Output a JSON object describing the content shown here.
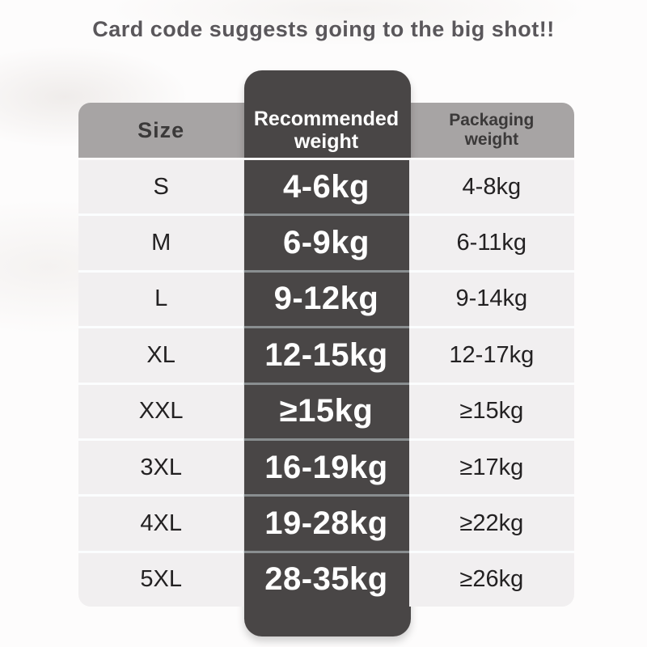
{
  "page": {
    "title": "Card code suggests going to the big shot!!"
  },
  "table": {
    "headers": {
      "size": "Size",
      "recommended_line1": "Recommended",
      "recommended_line2": "weight",
      "packaging_line1": "Packaging",
      "packaging_line2": "weight"
    },
    "rows": [
      {
        "size": "S",
        "recommended": "4-6kg",
        "packaging": "4-8kg"
      },
      {
        "size": "M",
        "recommended": "6-9kg",
        "packaging": "6-11kg"
      },
      {
        "size": "L",
        "recommended": "9-12kg",
        "packaging": "9-14kg"
      },
      {
        "size": "XL",
        "recommended": "12-15kg",
        "packaging": "12-17kg"
      },
      {
        "size": "XXL",
        "recommended": "≥15kg",
        "packaging": "≥15kg"
      },
      {
        "size": "3XL",
        "recommended": "16-19kg",
        "packaging": "≥17kg"
      },
      {
        "size": "4XL",
        "recommended": "19-28kg",
        "packaging": "≥22kg"
      },
      {
        "size": "5XL",
        "recommended": "28-35kg",
        "packaging": "≥26kg"
      }
    ]
  },
  "colors": {
    "highlight_column": "#494646",
    "header_band": "#a7a4a4",
    "row_background": "#f1eff0",
    "header_text_light": "#ffffff",
    "text_dark": "#232122",
    "title_text": "#5a575b"
  }
}
